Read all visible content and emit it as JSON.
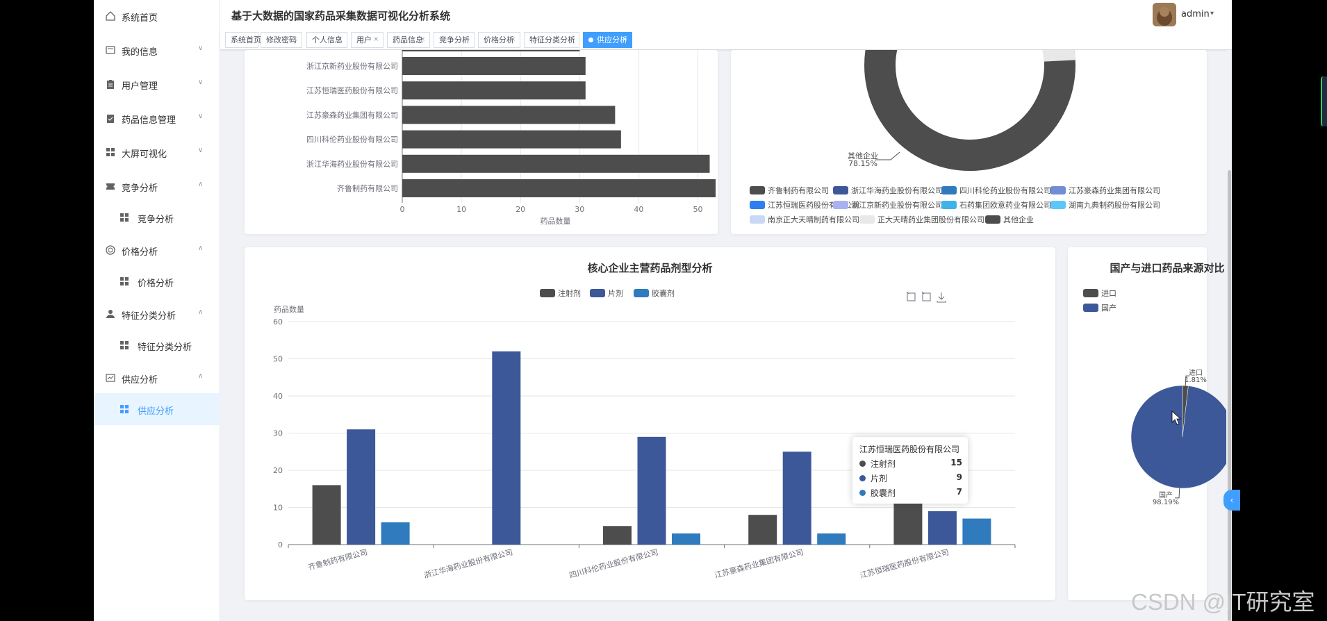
{
  "header": {
    "title": "基于大数据的国家药品采集数据可视化分析系统",
    "username": "admin"
  },
  "sidebar": {
    "items": [
      {
        "label": "系统首页",
        "icon": "home-icon",
        "arrow": ""
      },
      {
        "label": "我的信息",
        "icon": "profile-card-icon",
        "arrow": "∨"
      },
      {
        "label": "用户管理",
        "icon": "clipboard-icon",
        "arrow": "∨"
      },
      {
        "label": "药品信息管理",
        "icon": "clipboard-check-icon",
        "arrow": "∨"
      },
      {
        "label": "大屏可视化",
        "icon": "grid-icon",
        "arrow": "∨"
      },
      {
        "label": "竞争分析",
        "icon": "ticket-icon",
        "arrow": "∧"
      },
      {
        "label": "竞争分析",
        "icon": "grid-icon",
        "arrow": ""
      },
      {
        "label": "价格分析",
        "icon": "circle-icon",
        "arrow": "∧"
      },
      {
        "label": "价格分析",
        "icon": "grid-icon",
        "arrow": ""
      },
      {
        "label": "特征分类分析",
        "icon": "user-icon",
        "arrow": "∧"
      },
      {
        "label": "特征分类分析",
        "icon": "grid-icon",
        "arrow": ""
      },
      {
        "label": "供应分析",
        "icon": "chart-icon",
        "arrow": "∧"
      },
      {
        "label": "供应分析",
        "icon": "grid-icon",
        "arrow": ""
      }
    ]
  },
  "tags": [
    {
      "label": "系统首页",
      "close": ""
    },
    {
      "label": "修改密码",
      "close": "×"
    },
    {
      "label": "个人信息",
      "close": "×"
    },
    {
      "label": "用户",
      "close": "×"
    },
    {
      "label": "药品信息",
      "close": "×"
    },
    {
      "label": "竞争分析",
      "close": "×"
    },
    {
      "label": "价格分析",
      "close": "×"
    },
    {
      "label": "特征分类分析",
      "close": "×"
    },
    {
      "label": "供应分析",
      "close": "×"
    }
  ],
  "colors": {
    "accent": "#409eff",
    "dark": "#4d4d4d",
    "navy": "#3d5899",
    "blue": "#2f7bbd"
  },
  "chart_data": [
    {
      "type": "bar",
      "orientation": "horizontal",
      "categories": [
        "浙江京新药业股份有限公司",
        "江苏恒瑞医药股份有限公司",
        "江苏豪森药业集团有限公司",
        "四川科伦药业股份有限公司",
        "浙江华海药业股份有限公司",
        "齐鲁制药有限公司"
      ],
      "values": [
        31,
        31,
        36,
        37,
        52,
        53
      ],
      "xlabel": "药品数量",
      "xticks": [
        "0",
        "10",
        "20",
        "30",
        "40",
        "50",
        "60"
      ],
      "xlim": [
        0,
        60
      ]
    },
    {
      "type": "pie",
      "donut": true,
      "label": "其他企业",
      "label_value": "78.15%",
      "slices": [
        {
          "name": "齐鲁制药有限公司",
          "value": null
        },
        {
          "name": "浙江华海药业股份有限公司",
          "value": null
        },
        {
          "name": "四川科伦药业股份有限公司",
          "value": null
        },
        {
          "name": "江苏豪森药业集团有限公司",
          "value": null
        },
        {
          "name": "江苏恒瑞医药股份有限公司",
          "value": null
        },
        {
          "name": "浙江京新药业股份有限公司",
          "value": null
        },
        {
          "name": "石药集团欧意药业有限公司",
          "value": null
        },
        {
          "name": "湖南九典制药股份有限公司",
          "value": null
        },
        {
          "name": "南京正大天晴制药有限公司",
          "value": null
        },
        {
          "name": "正大天晴药业集团股份有限公司",
          "value": null
        },
        {
          "name": "其他企业",
          "value": 78.15
        }
      ],
      "legend": [
        {
          "name": "齐鲁制药有限公司",
          "color": "#4d4d4d"
        },
        {
          "name": "浙江华海药业股份有限公司",
          "color": "#3d5899"
        },
        {
          "name": "四川科伦药业股份有限公司",
          "color": "#2f7bbd"
        },
        {
          "name": "江苏豪森药业集团有限公司",
          "color": "#6f8ed6"
        },
        {
          "name": "江苏恒瑞医药股份有限公司",
          "color": "#2f7ef0"
        },
        {
          "name": "浙江京新药业股份有限公司",
          "color": "#a9b1f0"
        },
        {
          "name": "石药集团欧意药业有限公司",
          "color": "#3fb3e8"
        },
        {
          "name": "湖南九典制药股份有限公司",
          "color": "#5ec7f7"
        },
        {
          "name": "南京正大天晴制药有限公司",
          "color": "#c9d9f5"
        },
        {
          "name": "正大天晴药业集团股份有限公司",
          "color": "#e8e8e8"
        },
        {
          "name": "其他企业",
          "color": "#4d4d4d"
        }
      ]
    },
    {
      "type": "bar",
      "title": "核心企业主营药品剂型分析",
      "ylabel": "药品数量",
      "ylim": [
        0,
        60
      ],
      "yticks": [
        "0",
        "10",
        "20",
        "30",
        "40",
        "50",
        "60"
      ],
      "categories": [
        "齐鲁制药有限公司",
        "浙江华海药业股份有限公司",
        "四川科伦药业股份有限公司",
        "江苏豪森药业集团有限公司",
        "江苏恒瑞医药股份有限公司"
      ],
      "series": [
        {
          "name": "注射剂",
          "color": "#4d4d4d",
          "values": [
            16,
            0,
            5,
            8,
            15
          ]
        },
        {
          "name": "片剂",
          "color": "#3d5899",
          "values": [
            31,
            52,
            29,
            25,
            9
          ]
        },
        {
          "name": "胶囊剂",
          "color": "#2f7bbd",
          "values": [
            6,
            0,
            3,
            3,
            7
          ]
        }
      ],
      "tooltip": {
        "title": "江苏恒瑞医药股份有限公司",
        "rows": [
          {
            "name": "注射剂",
            "value": "15",
            "color": "#4d4d4d"
          },
          {
            "name": "片剂",
            "value": "9",
            "color": "#3d5899"
          },
          {
            "name": "胶囊剂",
            "value": "7",
            "color": "#2f7bbd"
          }
        ]
      }
    },
    {
      "type": "pie",
      "title": "国产与进口药品来源对比",
      "slices": [
        {
          "name": "进口",
          "value": 1.81,
          "label": "1.81%",
          "color": "#4d4d4d"
        },
        {
          "name": "国产",
          "value": 98.19,
          "label": "98.19%",
          "color": "#3d5899"
        }
      ]
    }
  ],
  "watermark": "CSDN @IT研究室"
}
